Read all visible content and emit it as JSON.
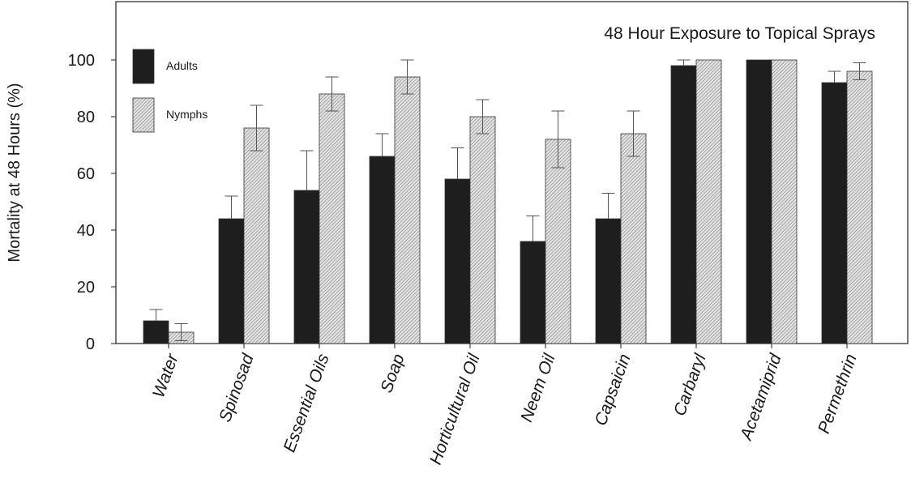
{
  "chart_data": {
    "type": "bar",
    "title": "48 Hour Exposure to Topical Sprays",
    "xlabel": "",
    "ylabel": "Mortality at 48 Hours (%)",
    "ylim": [
      0,
      115
    ],
    "yticks": [
      0,
      20,
      40,
      60,
      80,
      100
    ],
    "grid": false,
    "legend_position": "top-left",
    "categories": [
      "Water",
      "Spinosad",
      "Essential Oils",
      "Soap",
      "Horticultural Oil",
      "Neem Oil",
      "Capsaicin",
      "Carbaryl",
      "Acetamiprid",
      "Permethrin"
    ],
    "series": [
      {
        "name": "Adults",
        "color": "#1e1e1e",
        "pattern": "solid",
        "values": [
          8,
          44,
          54,
          66,
          58,
          36,
          44,
          98,
          100,
          92
        ],
        "errors": [
          4,
          8,
          14,
          8,
          11,
          9,
          9,
          2,
          0,
          4
        ]
      },
      {
        "name": "Nymphs",
        "color": "#bdbdbd",
        "pattern": "hatched",
        "values": [
          4,
          76,
          88,
          94,
          80,
          72,
          74,
          100,
          100,
          96
        ],
        "errors": [
          3,
          8,
          6,
          6,
          6,
          10,
          8,
          0,
          0,
          3
        ]
      }
    ]
  }
}
